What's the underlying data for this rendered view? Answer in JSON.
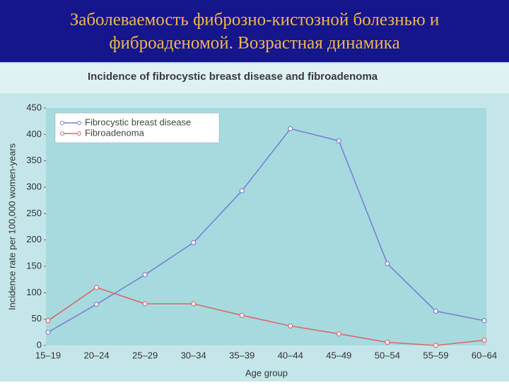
{
  "slide_title": [
    "Заболеваемость фиброзно-кистозной болезнью и",
    "фиброаденомой. Возрастная динамика"
  ],
  "chart_data": {
    "type": "line",
    "title": "Incidence of fibrocystic breast disease and fibroadenoma",
    "x_label": "Age group",
    "y_label": "Incidence rate per 100,000 women-years",
    "categories": [
      "15–19",
      "20–24",
      "25–29",
      "30–34",
      "35–39",
      "40–44",
      "45–49",
      "50–54",
      "55–59",
      "60–64"
    ],
    "series": [
      {
        "name": "Fibrocystic breast disease",
        "color": "#7c80d4",
        "values": [
          25,
          78,
          134,
          195,
          293,
          411,
          388,
          155,
          65,
          47
        ]
      },
      {
        "name": "Fibroadenoma",
        "color": "#d86a6e",
        "values": [
          47,
          110,
          79,
          79,
          57,
          37,
          22,
          6,
          0,
          10
        ]
      }
    ],
    "ylim": [
      0,
      450
    ],
    "yticks": [
      0,
      50,
      100,
      150,
      200,
      250,
      300,
      350,
      400,
      450
    ],
    "legend": "upper left"
  }
}
